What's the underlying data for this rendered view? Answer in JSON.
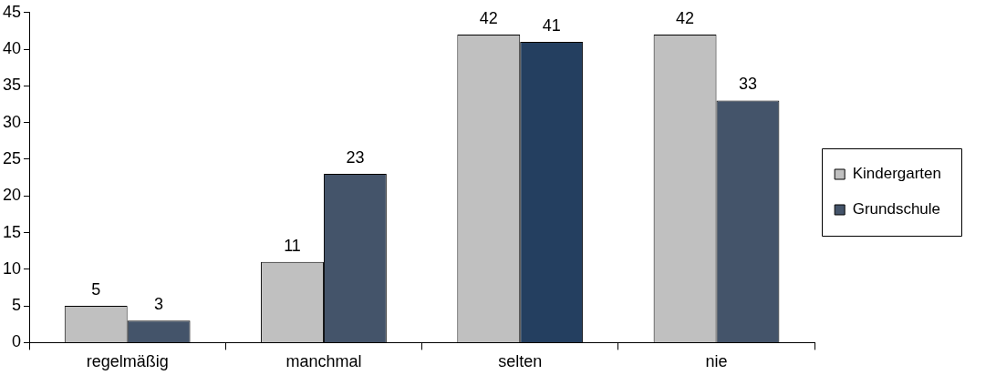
{
  "chart_data": {
    "type": "bar",
    "categories": [
      "regelmäßig",
      "manchmal",
      "selten",
      "nie"
    ],
    "series": [
      {
        "name": "Kindergarten",
        "color": "#c0c0c0",
        "values": [
          5,
          11,
          42,
          42
        ]
      },
      {
        "name": "Grundschule",
        "color": "#44546a",
        "colors": [
          "#44546a",
          "#44546a",
          "#243f60",
          "#44546a"
        ],
        "values": [
          3,
          23,
          41,
          33
        ]
      }
    ],
    "ylim": [
      0,
      45
    ],
    "yticks": [
      0,
      5,
      10,
      15,
      20,
      25,
      30,
      35,
      40,
      45
    ],
    "grid": false,
    "legend": "right",
    "data_labels": true
  }
}
